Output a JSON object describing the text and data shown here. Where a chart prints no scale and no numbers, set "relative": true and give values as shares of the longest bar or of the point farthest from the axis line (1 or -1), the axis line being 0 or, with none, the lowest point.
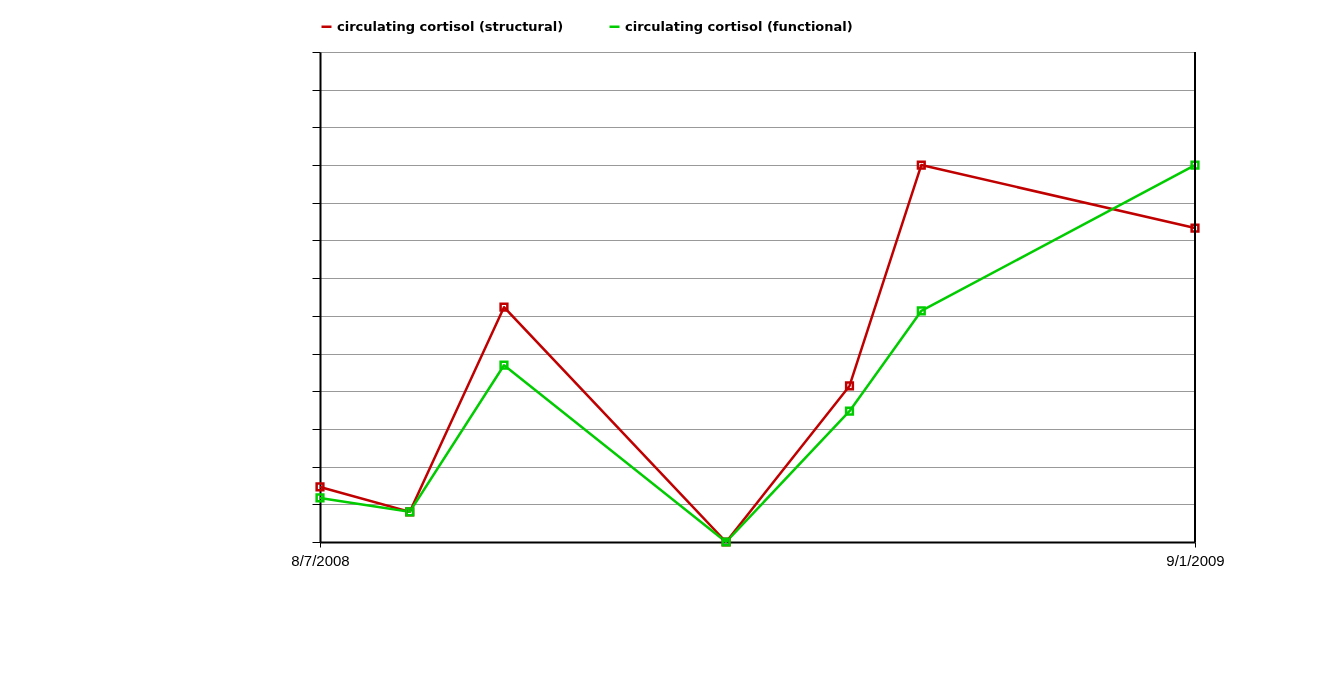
{
  "chart_data": {
    "type": "line",
    "relative": true,
    "x": [
      "2008-08-07",
      "2008-09-16",
      "2008-10-28",
      "2009-02-04",
      "2009-03-31",
      "2009-05-02",
      "2009-09-01"
    ],
    "xlim": [
      "2008-08-07",
      "2009-09-01"
    ],
    "xticks": [
      {
        "value": "2008-08-07",
        "label": "8/7/2008"
      },
      {
        "value": "2009-09-01",
        "label": "9/1/2009"
      }
    ],
    "series": [
      {
        "name": "circulating cortisol (structural)",
        "color": "#c00000",
        "values": [
          0.146,
          0.08,
          0.623,
          0,
          0.414,
          1,
          0.833
        ]
      },
      {
        "name": "circulating cortisol (functional)",
        "color": "#00cc00",
        "values": [
          0.117,
          0.08,
          0.469,
          0,
          0.347,
          0.613,
          1
        ]
      }
    ],
    "marker": "square",
    "line_style": "solid",
    "grid": "y",
    "legend": "top left"
  }
}
